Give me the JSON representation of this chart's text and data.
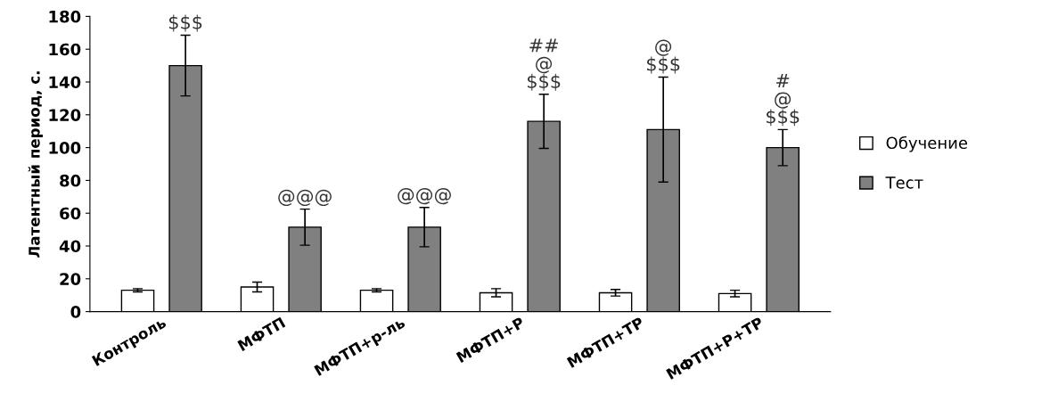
{
  "chart_data": {
    "type": "bar",
    "ylabel": "Латентный период, с.",
    "categories": [
      "Контроль",
      "МФТП",
      "МФТП+р-ль",
      "МФТП+Р",
      "МФТП+ТР",
      "МФТП+Р+ТР"
    ],
    "series": [
      {
        "name": "Обучение",
        "color": "#ffffff",
        "values": [
          13,
          15,
          13,
          11.5,
          11.5,
          11
        ],
        "errors": [
          1,
          3,
          1,
          2.5,
          2,
          2
        ]
      },
      {
        "name": "Тест",
        "color": "#808080",
        "values": [
          150,
          51.5,
          51.5,
          116,
          111,
          100
        ],
        "errors": [
          18.5,
          11,
          12,
          16.5,
          32,
          11
        ]
      }
    ],
    "ylim": [
      0,
      180
    ],
    "yticks": [
      0,
      20,
      40,
      60,
      80,
      100,
      120,
      140,
      160,
      180
    ],
    "grid": false,
    "legend": "right",
    "annotations": [
      "$$$",
      "@@@",
      "@@@",
      "##\n@\n$$$",
      "@\n$$$",
      "#\n@\n$$$"
    ]
  }
}
